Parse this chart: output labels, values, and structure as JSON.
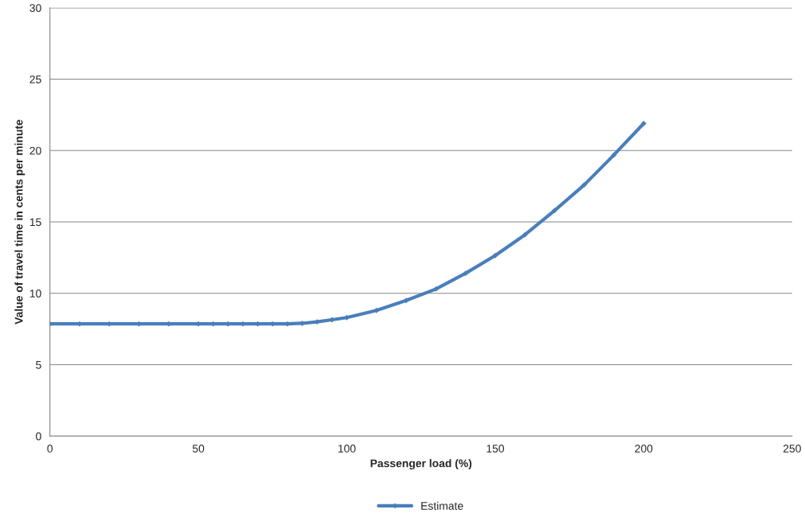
{
  "chart_data": {
    "type": "line",
    "xlabel": "Passenger load (%)",
    "ylabel": "Value of travel time in cents per minute",
    "series": [
      {
        "name": "Estimate",
        "color": "#4a7ebb",
        "x": [
          0,
          10,
          20,
          30,
          40,
          50,
          55,
          60,
          65,
          70,
          75,
          80,
          85,
          90,
          95,
          100,
          110,
          120,
          130,
          140,
          150,
          160,
          170,
          180,
          190,
          200
        ],
        "values": [
          7.86,
          7.86,
          7.86,
          7.86,
          7.86,
          7.86,
          7.86,
          7.86,
          7.86,
          7.86,
          7.86,
          7.86,
          7.9,
          8.0,
          8.15,
          8.3,
          8.8,
          9.5,
          10.3,
          11.4,
          12.65,
          14.1,
          15.8,
          17.6,
          19.7,
          21.9
        ]
      }
    ],
    "xlim": [
      0,
      250
    ],
    "xticks": [
      0,
      50,
      100,
      150,
      200,
      250
    ],
    "ylim": [
      0,
      30
    ],
    "yticks": [
      0,
      5,
      10,
      15,
      20,
      25,
      30
    ],
    "grid": "y",
    "legend": "bottom",
    "marker": "diamond",
    "line_style": "solid"
  }
}
